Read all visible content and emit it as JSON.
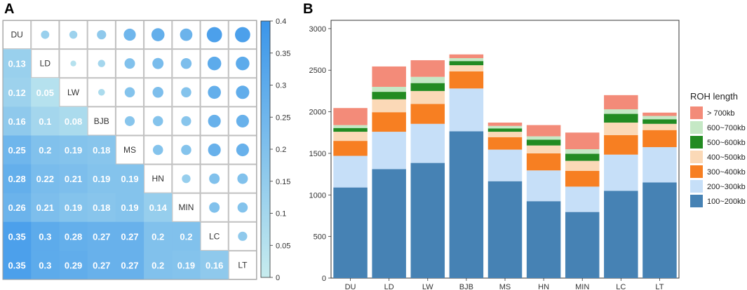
{
  "chart_data": [
    {
      "type": "heatmap",
      "panel_label": "A",
      "labels": [
        "DU",
        "LD",
        "LW",
        "BJB",
        "MS",
        "HN",
        "MIN",
        "LC",
        "LT"
      ],
      "lower_values": [
        [
          null,
          null,
          null,
          null,
          null,
          null,
          null,
          null,
          null
        ],
        [
          0.13,
          null,
          null,
          null,
          null,
          null,
          null,
          null,
          null
        ],
        [
          0.12,
          0.05,
          null,
          null,
          null,
          null,
          null,
          null,
          null
        ],
        [
          0.16,
          0.1,
          0.08,
          null,
          null,
          null,
          null,
          null,
          null
        ],
        [
          0.25,
          0.2,
          0.19,
          0.18,
          null,
          null,
          null,
          null,
          null
        ],
        [
          0.28,
          0.22,
          0.21,
          0.19,
          0.19,
          null,
          null,
          null,
          null
        ],
        [
          0.26,
          0.21,
          0.19,
          0.18,
          0.19,
          0.14,
          null,
          null,
          null
        ],
        [
          0.35,
          0.3,
          0.28,
          0.27,
          0.27,
          0.2,
          0.2,
          null,
          null
        ],
        [
          0.35,
          0.3,
          0.29,
          0.27,
          0.27,
          0.2,
          0.19,
          0.16,
          null
        ]
      ],
      "lower_labels": [
        [],
        [
          "0.13"
        ],
        [
          "0.12",
          "0.05"
        ],
        [
          "0.16",
          "0.1",
          "0.08"
        ],
        [
          "0.25",
          "0.2",
          "0.19",
          "0.18"
        ],
        [
          "0.28",
          "0.22",
          "0.21",
          "0.19",
          "0.19"
        ],
        [
          "0.26",
          "0.21",
          "0.19",
          "0.18",
          "0.19",
          "0.14"
        ],
        [
          "0.35",
          "0.3",
          "0.28",
          "0.27",
          "0.27",
          "0.2",
          "0.2"
        ],
        [
          "0.35",
          "0.3",
          "0.29",
          "0.27",
          "0.27",
          "0.2",
          "0.19",
          "0.16"
        ]
      ],
      "colorbar": {
        "min": 0,
        "max": 0.4,
        "ticks": [
          "0",
          "0.05",
          "0.1",
          "0.15",
          "0.2",
          "0.25",
          "0.3",
          "0.35",
          "0.4"
        ],
        "low_color": "#c7ecee",
        "high_color": "#3a95ea"
      }
    },
    {
      "type": "bar",
      "stacked": true,
      "panel_label": "B",
      "categories": [
        "DU",
        "LD",
        "LW",
        "BJB",
        "MS",
        "HN",
        "MIN",
        "LC",
        "LT"
      ],
      "ylim": [
        0,
        3100
      ],
      "yticks": [
        "0",
        "500",
        "1000",
        "1500",
        "2000",
        "2500",
        "3000"
      ],
      "legend_title": "ROH length",
      "legend_position": "right",
      "series": [
        {
          "name": "100~200kb",
          "color": "#4682b4",
          "values": [
            1090,
            1310,
            1385,
            1765,
            1165,
            925,
            795,
            1050,
            1150
          ]
        },
        {
          "name": "200~300kb",
          "color": "#c6dff8",
          "values": [
            380,
            450,
            470,
            515,
            380,
            370,
            305,
            435,
            425
          ]
        },
        {
          "name": "300~400kb",
          "color": "#f77f22",
          "values": [
            180,
            235,
            240,
            205,
            150,
            205,
            190,
            235,
            205
          ]
        },
        {
          "name": "400~500kb",
          "color": "#fbd9b7",
          "values": [
            110,
            155,
            155,
            75,
            65,
            95,
            120,
            150,
            75
          ]
        },
        {
          "name": "500~600kb",
          "color": "#228b22",
          "values": [
            45,
            90,
            95,
            50,
            40,
            70,
            85,
            105,
            55
          ]
        },
        {
          "name": "600~700kb",
          "color": "#c5e8c5",
          "values": [
            35,
            60,
            75,
            35,
            30,
            40,
            55,
            55,
            40
          ]
        },
        {
          "name": "> 700kb",
          "color": "#f38b79",
          "values": [
            205,
            245,
            200,
            45,
            40,
            135,
            200,
            170,
            40
          ]
        }
      ]
    }
  ]
}
